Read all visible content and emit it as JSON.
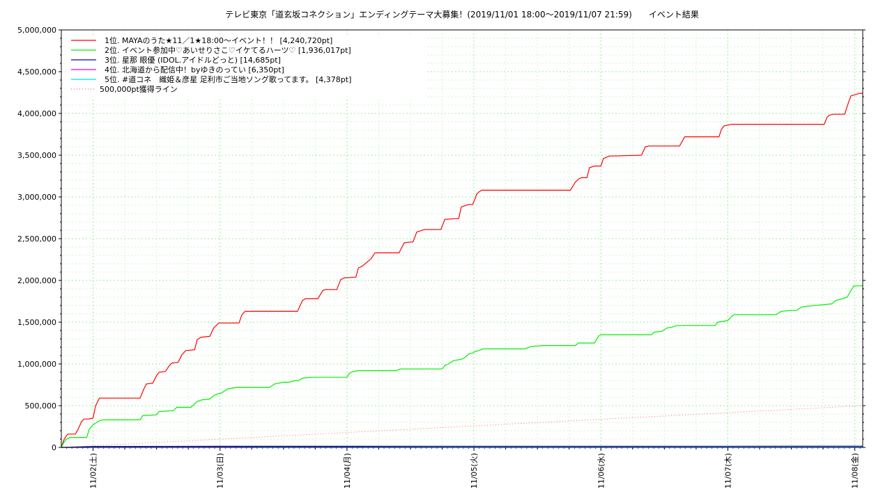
{
  "chart_data": {
    "type": "line",
    "title": "テレビ東京「道玄坂コネクション」エンディングテーマ大募集！(2019/11/01 18:00〜2019/11/07 21:59)　　イベント結果",
    "xlabel": "",
    "ylabel": "",
    "x_tick_labels": [
      "11/02(土)",
      "11/03(日)",
      "11/04(月)",
      "11/05(火)",
      "11/06(水)",
      "11/07(木)",
      "11/08(金)"
    ],
    "x_tick_days": [
      1,
      2,
      3,
      4,
      5,
      6,
      7
    ],
    "xlim": [
      0.75,
      7.0625
    ],
    "y_tick_labels": [
      "0",
      "500,000",
      "1,000,000",
      "1,500,000",
      "2,000,000",
      "2,500,000",
      "3,000,000",
      "3,500,000",
      "4,000,000",
      "4,500,000",
      "5,000,000"
    ],
    "ylim": [
      0,
      5000000
    ],
    "grid": true,
    "legend_position": "top-left",
    "series": [
      {
        "name": "1位. MAYAのうた★11／1★18:00〜イベント！！ [4,240,720pt]",
        "color": "#ff0000",
        "style": "solid",
        "x": [
          0.75,
          0.77,
          0.79,
          0.8,
          0.82,
          0.86,
          0.88,
          0.91,
          0.93,
          0.96,
          1.0,
          1.02,
          1.05,
          1.37,
          1.4,
          1.42,
          1.47,
          1.5,
          1.52,
          1.57,
          1.6,
          1.62,
          1.67,
          1.7,
          1.73,
          1.8,
          1.82,
          1.85,
          1.92,
          1.95,
          1.99,
          2.07,
          2.11,
          2.15,
          2.17,
          2.19,
          2.2,
          2.22,
          2.24,
          2.61,
          2.65,
          2.67,
          2.77,
          2.81,
          2.83,
          2.92,
          2.95,
          2.98,
          3.07,
          3.09,
          3.12,
          3.19,
          3.22,
          3.26,
          3.41,
          3.45,
          3.5,
          3.52,
          3.55,
          3.61,
          3.74,
          3.77,
          3.85,
          3.88,
          3.9,
          3.96,
          3.99,
          4.01,
          4.02,
          4.04,
          4.06,
          4.08,
          4.76,
          4.8,
          4.83,
          4.85,
          4.89,
          4.91,
          4.95,
          5.0,
          5.02,
          5.05,
          5.07,
          5.1,
          5.32,
          5.35,
          5.38,
          5.62,
          5.66,
          5.7,
          5.93,
          5.95,
          5.97,
          6.0,
          6.03,
          6.05,
          6.76,
          6.78,
          6.8,
          6.83,
          6.9,
          6.92,
          6.95,
          6.97,
          7.04,
          7.06
        ],
        "y": [
          0,
          90000,
          140000,
          160000,
          160000,
          160000,
          210000,
          310000,
          340000,
          340000,
          350000,
          500000,
          590000,
          590000,
          700000,
          760000,
          770000,
          860000,
          900000,
          910000,
          980000,
          1010000,
          1020000,
          1110000,
          1160000,
          1170000,
          1290000,
          1320000,
          1330000,
          1430000,
          1490000,
          1490000,
          1490000,
          1490000,
          1580000,
          1620000,
          1630000,
          1630000,
          1630000,
          1630000,
          1760000,
          1780000,
          1780000,
          1880000,
          1890000,
          1890000,
          2010000,
          2030000,
          2040000,
          2150000,
          2170000,
          2260000,
          2330000,
          2330000,
          2330000,
          2450000,
          2460000,
          2460000,
          2580000,
          2610000,
          2610000,
          2730000,
          2740000,
          2740000,
          2880000,
          2910000,
          2910000,
          2980000,
          3030000,
          3060000,
          3080000,
          3080000,
          3080000,
          3180000,
          3220000,
          3230000,
          3230000,
          3350000,
          3370000,
          3370000,
          3460000,
          3480000,
          3490000,
          3490000,
          3500000,
          3600000,
          3610000,
          3610000,
          3720000,
          3720000,
          3720000,
          3810000,
          3850000,
          3860000,
          3870000,
          3870000,
          3870000,
          3950000,
          3980000,
          3990000,
          3990000,
          3990000,
          4130000,
          4210000,
          4240720,
          4240720
        ]
      },
      {
        "name": "2位. イベント参加中♡あいせりさこ♡イケてるハーツ♡ [1,936,017pt]",
        "color": "#00ee00",
        "style": "solid",
        "x": [
          0.75,
          0.77,
          0.79,
          0.82,
          0.86,
          0.9,
          0.95,
          0.97,
          1.0,
          1.03,
          1.05,
          1.08,
          1.12,
          1.37,
          1.39,
          1.5,
          1.52,
          1.63,
          1.66,
          1.77,
          1.8,
          1.82,
          1.86,
          1.92,
          1.95,
          1.98,
          2.01,
          2.06,
          2.13,
          2.39,
          2.43,
          2.5,
          2.54,
          2.59,
          2.62,
          2.65,
          2.72,
          2.75,
          3.0,
          3.02,
          3.05,
          3.09,
          3.39,
          3.42,
          3.75,
          3.77,
          3.8,
          3.84,
          3.88,
          3.91,
          3.94,
          3.96,
          3.99,
          4.01,
          4.04,
          4.07,
          4.1,
          4.15,
          4.4,
          4.45,
          4.55,
          4.65,
          4.8,
          4.82,
          4.95,
          4.98,
          5.0,
          5.02,
          5.2,
          5.4,
          5.42,
          5.48,
          5.52,
          5.56,
          5.6,
          5.6,
          5.9,
          5.92,
          6.0,
          6.03,
          6.05,
          6.38,
          6.42,
          6.5,
          6.54,
          6.58,
          6.62,
          6.82,
          6.85,
          6.9,
          6.94,
          6.97,
          6.99,
          7.02,
          7.06
        ],
        "y": [
          0,
          60000,
          100000,
          120000,
          120000,
          120000,
          120000,
          220000,
          270000,
          300000,
          320000,
          330000,
          330000,
          330000,
          380000,
          390000,
          430000,
          440000,
          480000,
          480000,
          520000,
          550000,
          570000,
          580000,
          620000,
          640000,
          650000,
          700000,
          720000,
          720000,
          760000,
          780000,
          780000,
          800000,
          800000,
          830000,
          840000,
          840000,
          840000,
          890000,
          910000,
          920000,
          920000,
          940000,
          940000,
          980000,
          1000000,
          1040000,
          1050000,
          1060000,
          1090000,
          1120000,
          1130000,
          1150000,
          1160000,
          1180000,
          1180000,
          1180000,
          1180000,
          1210000,
          1220000,
          1220000,
          1220000,
          1250000,
          1250000,
          1330000,
          1350000,
          1350000,
          1350000,
          1350000,
          1380000,
          1390000,
          1430000,
          1440000,
          1460000,
          1460000,
          1460000,
          1500000,
          1520000,
          1570000,
          1590000,
          1590000,
          1630000,
          1640000,
          1640000,
          1680000,
          1690000,
          1720000,
          1760000,
          1780000,
          1800000,
          1880000,
          1930000,
          1936017,
          1936017
        ]
      },
      {
        "name": "3位. 星那 眼優 (IDOL.アイドルどっと) [14,685pt]",
        "color": "#0000cc",
        "style": "solid",
        "x": [
          0.75,
          1.0,
          2.0,
          3.0,
          4.0,
          5.0,
          6.0,
          7.06
        ],
        "y": [
          0,
          12000,
          13000,
          13500,
          14000,
          14300,
          14500,
          14685
        ]
      },
      {
        "name": "4位. 北海道から配信中！byゆきのってい [6,350pt]",
        "color": "#ee00ee",
        "style": "solid",
        "x": [
          0.75,
          2.0,
          4.0,
          5.0,
          6.0,
          7.06
        ],
        "y": [
          0,
          3000,
          4500,
          5500,
          6000,
          6350
        ]
      },
      {
        "name": "5位. #道コネ　織姫＆彦星 足利市ご当地ソング歌ってます。 [4,378pt]",
        "color": "#00dddd",
        "style": "solid",
        "x": [
          0.75,
          2.0,
          4.0,
          6.0,
          7.06
        ],
        "y": [
          0,
          2000,
          3000,
          4000,
          4378
        ]
      },
      {
        "name": "500,000pt獲得ライン",
        "color": "#ff6666",
        "style": "dotted",
        "x": [
          0.75,
          7.0625
        ],
        "y": [
          0,
          500000
        ]
      }
    ]
  }
}
